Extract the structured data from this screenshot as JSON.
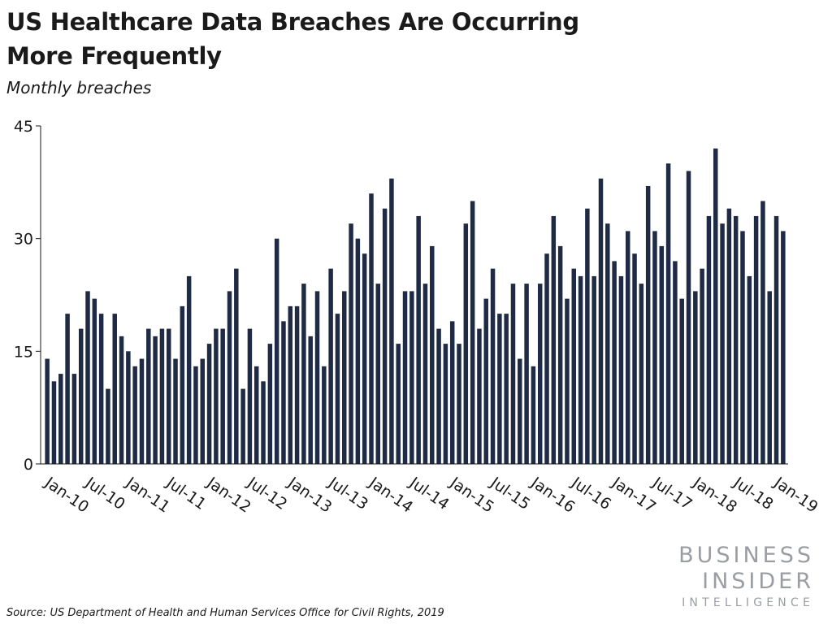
{
  "title": "US Healthcare Data Breaches Are Occurring More Frequently",
  "subtitle": "Monthly breaches",
  "source": "Source: US Department of Health and Human Services Office for Civil Rights, 2019",
  "logo": {
    "line1": "BUSINESS",
    "line2": "INSIDER",
    "line3": "INTELLIGENCE"
  },
  "colors": {
    "bar": "#1f2a44",
    "axis": "#1a1a1a",
    "logo": "#9a9ea3"
  },
  "chart_data": {
    "type": "bar",
    "title": "US Healthcare Data Breaches Are Occurring More Frequently",
    "subtitle": "Monthly breaches",
    "ylim": [
      0,
      45
    ],
    "yticks": [
      0,
      15,
      30,
      45
    ],
    "grid": false,
    "legend": "none",
    "x_tick_labels": [
      {
        "label": "Jan-10",
        "index": 0
      },
      {
        "label": "Jul-10",
        "index": 6
      },
      {
        "label": "Jan-11",
        "index": 12
      },
      {
        "label": "Jul-11",
        "index": 18
      },
      {
        "label": "Jan-12",
        "index": 24
      },
      {
        "label": "Jul-12",
        "index": 30
      },
      {
        "label": "Jan-13",
        "index": 36
      },
      {
        "label": "Jul-13",
        "index": 42
      },
      {
        "label": "Jan-14",
        "index": 48
      },
      {
        "label": "Jul-14",
        "index": 54
      },
      {
        "label": "Jan-15",
        "index": 60
      },
      {
        "label": "Jul-15",
        "index": 66
      },
      {
        "label": "Jan-16",
        "index": 72
      },
      {
        "label": "Jul-16",
        "index": 78
      },
      {
        "label": "Jan-17",
        "index": 84
      },
      {
        "label": "Jul-17",
        "index": 90
      },
      {
        "label": "Jan-18",
        "index": 96
      },
      {
        "label": "Jul-18",
        "index": 102
      },
      {
        "label": "Jan-19",
        "index": 108
      }
    ],
    "series": [
      {
        "values": [
          14,
          11,
          12,
          20,
          12,
          18,
          23,
          22,
          20,
          10,
          20,
          17,
          15,
          13,
          14,
          18,
          17,
          18,
          18,
          14,
          21,
          25,
          13,
          14,
          16,
          18,
          18,
          23,
          26,
          10,
          18,
          13,
          11,
          16,
          30,
          19,
          21,
          21,
          24,
          17,
          23,
          13,
          26,
          20,
          23,
          32,
          30,
          28,
          36,
          24,
          34,
          38,
          16,
          23,
          23,
          33,
          24,
          29,
          18,
          16,
          19,
          16,
          32,
          35,
          18,
          22,
          26,
          20,
          20,
          24,
          14,
          24,
          13,
          24,
          28,
          33,
          29,
          22,
          26,
          25,
          34,
          25,
          38,
          32,
          27,
          25,
          31,
          28,
          24,
          37,
          31,
          29,
          40,
          27,
          22,
          39,
          23,
          26,
          33,
          42,
          32,
          34,
          33,
          31,
          25,
          33,
          35,
          23,
          33,
          31
        ]
      }
    ]
  }
}
